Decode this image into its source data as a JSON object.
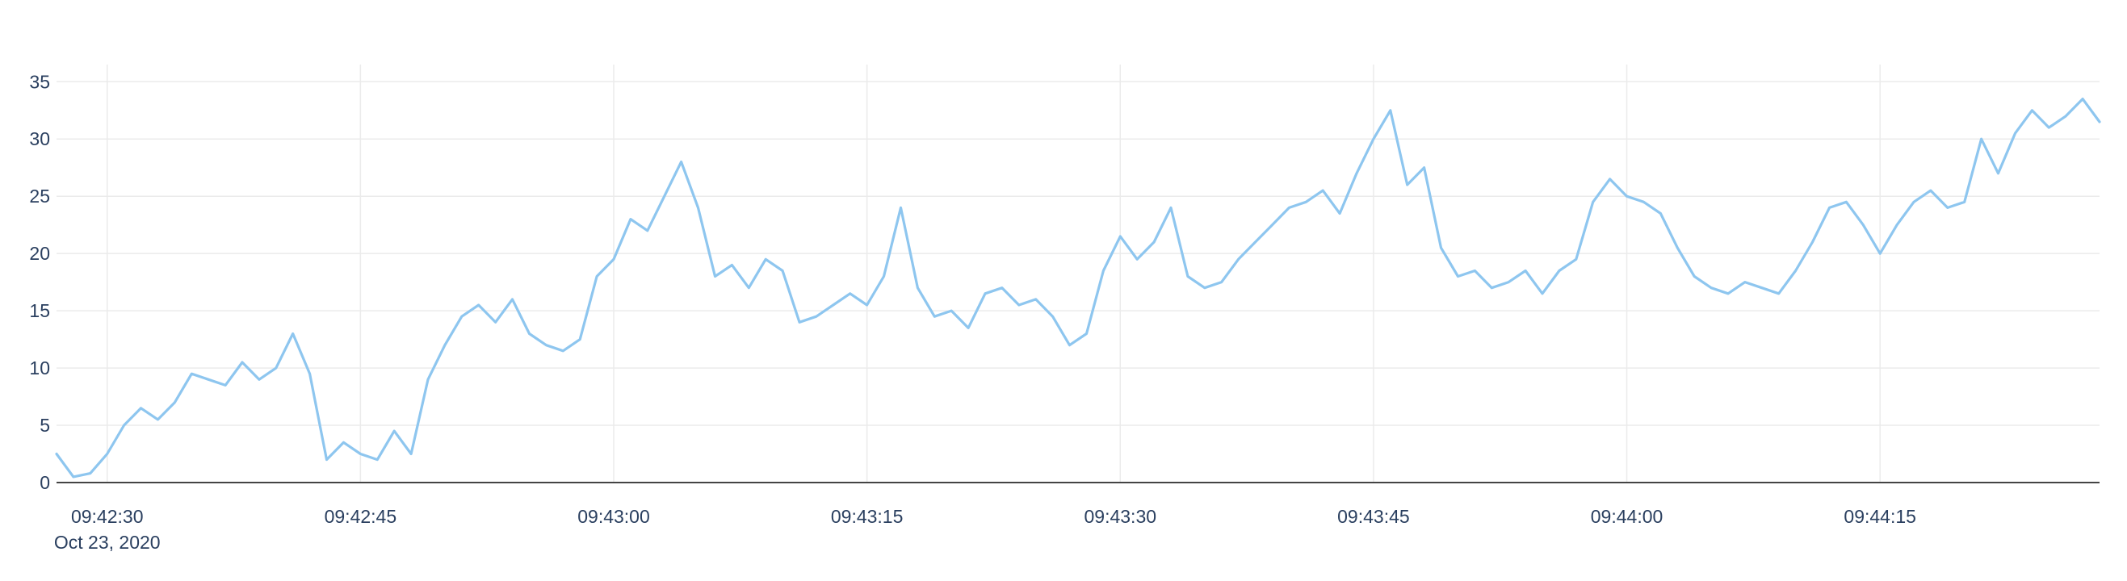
{
  "chart_data": {
    "type": "line",
    "title": "",
    "xlabel": "",
    "ylabel": "",
    "date_label": "Oct 23, 2020",
    "x_start": "09:42:27",
    "x_end": "09:44:28",
    "xlim": [
      "09:42:27",
      "09:44:28"
    ],
    "ylim": [
      0,
      36.5
    ],
    "y_ticks": [
      0,
      5,
      10,
      15,
      20,
      25,
      30,
      35
    ],
    "x_ticks": [
      "09:42:30",
      "09:42:45",
      "09:43:00",
      "09:43:15",
      "09:43:30",
      "09:43:45",
      "09:44:00",
      "09:44:15"
    ],
    "grid": true,
    "legend": "none",
    "colors": {
      "line": "#8ec6ef",
      "grid": "#ebebeb",
      "axis": "#444444",
      "text": "#2a3f5f"
    },
    "series": [
      {
        "x": [
          "09:42:27",
          "09:42:28",
          "09:42:29",
          "09:42:30",
          "09:42:31",
          "09:42:32",
          "09:42:33",
          "09:42:34",
          "09:42:35",
          "09:42:36",
          "09:42:37",
          "09:42:38",
          "09:42:39",
          "09:42:40",
          "09:42:41",
          "09:42:42",
          "09:42:43",
          "09:42:44",
          "09:42:45",
          "09:42:46",
          "09:42:47",
          "09:42:48",
          "09:42:49",
          "09:42:50",
          "09:42:51",
          "09:42:52",
          "09:42:53",
          "09:42:54",
          "09:42:55",
          "09:42:56",
          "09:42:57",
          "09:42:58",
          "09:42:59",
          "09:43:00",
          "09:43:01",
          "09:43:02",
          "09:43:03",
          "09:43:04",
          "09:43:05",
          "09:43:06",
          "09:43:07",
          "09:43:08",
          "09:43:09",
          "09:43:10",
          "09:43:11",
          "09:43:12",
          "09:43:13",
          "09:43:14",
          "09:43:15",
          "09:43:16",
          "09:43:17",
          "09:43:18",
          "09:43:19",
          "09:43:20",
          "09:43:21",
          "09:43:22",
          "09:43:23",
          "09:43:24",
          "09:43:25",
          "09:43:26",
          "09:43:27",
          "09:43:28",
          "09:43:29",
          "09:43:30",
          "09:43:31",
          "09:43:32",
          "09:43:33",
          "09:43:34",
          "09:43:35",
          "09:43:36",
          "09:43:37",
          "09:43:38",
          "09:43:39",
          "09:43:40",
          "09:43:41",
          "09:43:42",
          "09:43:43",
          "09:43:44",
          "09:43:45",
          "09:43:46",
          "09:43:47",
          "09:43:48",
          "09:43:49",
          "09:43:50",
          "09:43:51",
          "09:43:52",
          "09:43:53",
          "09:43:54",
          "09:43:55",
          "09:43:56",
          "09:43:57",
          "09:43:58",
          "09:43:59",
          "09:44:00",
          "09:44:01",
          "09:44:02",
          "09:44:03",
          "09:44:04",
          "09:44:05",
          "09:44:06",
          "09:44:07",
          "09:44:08",
          "09:44:09",
          "09:44:10",
          "09:44:11",
          "09:44:12",
          "09:44:13",
          "09:44:14",
          "09:44:15",
          "09:44:16",
          "09:44:17",
          "09:44:18",
          "09:44:19",
          "09:44:20",
          "09:44:21",
          "09:44:22",
          "09:44:23",
          "09:44:24",
          "09:44:25",
          "09:44:26",
          "09:44:27",
          "09:44:28"
        ],
        "y": [
          2.5,
          0.5,
          0.8,
          2.5,
          5.0,
          6.5,
          5.5,
          7.0,
          9.5,
          9.0,
          8.5,
          10.5,
          9.0,
          10.0,
          13.0,
          9.5,
          2.0,
          3.5,
          2.5,
          2.0,
          4.5,
          2.5,
          9.0,
          12.0,
          14.5,
          15.5,
          14.0,
          16.0,
          13.0,
          12.0,
          11.5,
          12.5,
          18.0,
          19.5,
          23.0,
          22.0,
          25.0,
          28.0,
          24.0,
          18.0,
          19.0,
          17.0,
          19.5,
          18.5,
          14.0,
          14.5,
          15.5,
          16.5,
          15.5,
          18.0,
          24.0,
          17.0,
          14.5,
          15.0,
          13.5,
          16.5,
          17.0,
          15.5,
          16.0,
          14.5,
          12.0,
          13.0,
          18.5,
          21.5,
          19.5,
          21.0,
          24.0,
          18.0,
          17.0,
          17.5,
          19.5,
          21.0,
          22.5,
          24.0,
          24.5,
          25.5,
          23.5,
          27.0,
          30.0,
          32.5,
          26.0,
          27.5,
          20.5,
          18.0,
          18.5,
          17.0,
          17.5,
          18.5,
          16.5,
          18.5,
          19.5,
          24.5,
          26.5,
          25.0,
          24.5,
          23.5,
          20.5,
          18.0,
          17.0,
          16.5,
          17.5,
          17.0,
          16.5,
          18.5,
          21.0,
          24.0,
          24.5,
          22.5,
          20.0,
          22.5,
          24.5,
          25.5,
          24.0,
          24.5,
          30.0,
          27.0,
          30.5,
          32.5,
          31.0,
          32.0,
          33.5,
          31.5
        ]
      }
    ]
  }
}
